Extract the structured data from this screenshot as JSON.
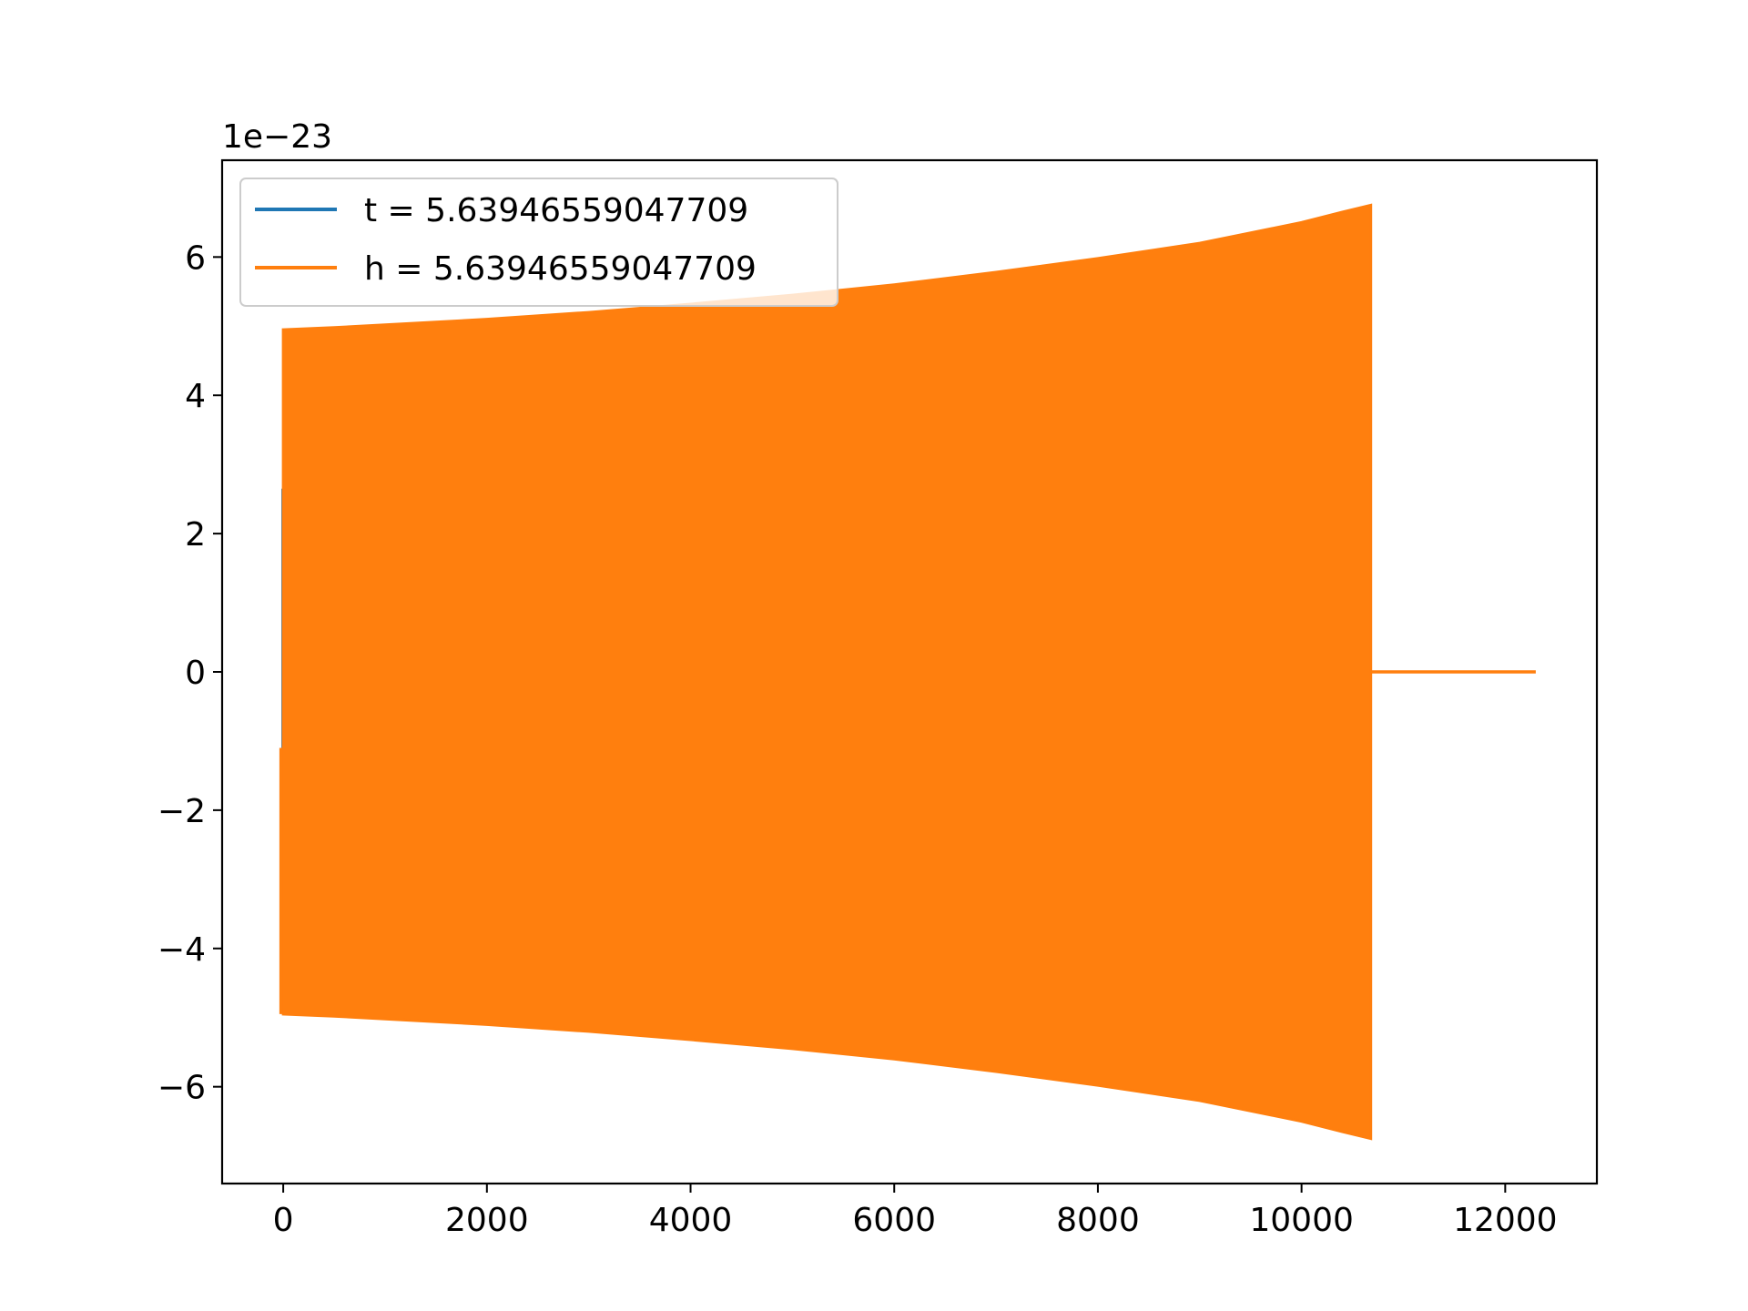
{
  "chart_data": {
    "type": "line",
    "title": "",
    "xlabel": "",
    "ylabel": "",
    "y_offset_label": "1e−23",
    "xlim": [
      -600,
      12900
    ],
    "ylim": [
      -7.4,
      7.4
    ],
    "x_ticks": [
      0,
      2000,
      4000,
      6000,
      8000,
      10000,
      12000
    ],
    "x_tick_labels": [
      "0",
      "2000",
      "4000",
      "6000",
      "8000",
      "10000",
      "12000"
    ],
    "y_ticks": [
      -6,
      -4,
      -2,
      0,
      2,
      4,
      6
    ],
    "y_tick_labels": [
      "−6",
      "−4",
      "−2",
      "0",
      "2",
      "4",
      "6"
    ],
    "grid": false,
    "legend_position": "top-left",
    "series": [
      {
        "name": "t = 5.63946559047709",
        "color": "#1f77b4",
        "kind": "short-spike",
        "x": [
          -5,
          -5
        ],
        "y": [
          -1.1,
          2.65
        ]
      },
      {
        "name": "h = 5.63946559047709",
        "color": "#ff7f0e",
        "kind": "oscillation-envelope",
        "x": [
          0,
          500,
          1000,
          2000,
          3000,
          4000,
          5000,
          6000,
          7000,
          8000,
          9000,
          10000,
          10400,
          10680
        ],
        "upper": [
          4.95,
          4.98,
          5.02,
          5.1,
          5.2,
          5.32,
          5.45,
          5.6,
          5.78,
          5.98,
          6.2,
          6.5,
          6.65,
          6.75
        ],
        "lower": [
          -4.95,
          -4.98,
          -5.02,
          -5.1,
          -5.2,
          -5.32,
          -5.45,
          -5.6,
          -5.78,
          -5.98,
          -6.2,
          -6.5,
          -6.65,
          -6.75
        ],
        "tail_x": [
          10680,
          12300
        ],
        "tail_y": [
          0,
          0
        ]
      }
    ]
  }
}
